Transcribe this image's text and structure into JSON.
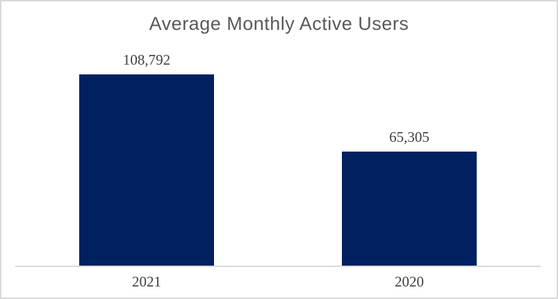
{
  "chart": {
    "colors": {
      "bar": "#002060",
      "title_text": "#595959",
      "label_text": "#404040",
      "axis_line": "#D9D9D9",
      "frame_border": "#D9D9D9",
      "background": "#FFFFFF"
    }
  },
  "chart_data": {
    "type": "bar",
    "title": "Average Monthly Active Users",
    "categories": [
      "2021",
      "2020"
    ],
    "values": [
      108792,
      65305
    ],
    "value_labels": [
      "108,792",
      "65,305"
    ],
    "xlabel": "",
    "ylabel": "",
    "ylim": [
      0,
      120000
    ],
    "grid": false,
    "legend": false,
    "y_axis_labels": false,
    "data_label_position": "outside-end",
    "orientation": "vertical"
  }
}
